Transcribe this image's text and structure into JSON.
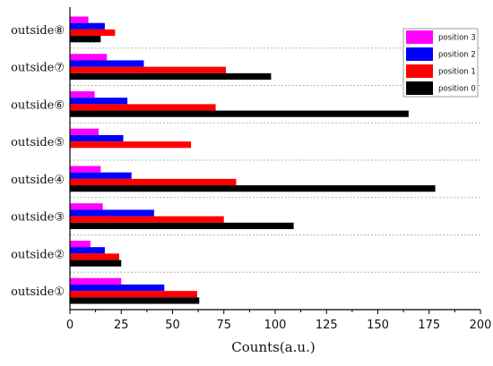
{
  "chart_data": {
    "type": "bar",
    "orientation": "horizontal",
    "categories": [
      "outside①",
      "outside②",
      "outside③",
      "outside④",
      "outside⑤",
      "outside⑥",
      "outside⑦",
      "outside⑧"
    ],
    "series": [
      {
        "name": "position 0",
        "color": "#000000",
        "values": [
          63,
          25,
          109,
          178,
          0,
          165,
          98,
          15
        ]
      },
      {
        "name": "position 1",
        "color": "#ff0000",
        "values": [
          62,
          24,
          75,
          81,
          59,
          71,
          76,
          22
        ]
      },
      {
        "name": "position 2",
        "color": "#0000ff",
        "values": [
          46,
          17,
          41,
          30,
          26,
          28,
          36,
          17
        ]
      },
      {
        "name": "position 3",
        "color": "#ff00ff",
        "values": [
          25,
          10,
          16,
          15,
          14,
          12,
          18,
          9
        ]
      }
    ],
    "xlabel": "Counts(a.u.)",
    "ylabel": "",
    "title": "",
    "xlim": [
      0,
      200
    ],
    "xticks": [
      "0",
      "25",
      "50",
      "75",
      "100",
      "125",
      "150",
      "175",
      "200"
    ],
    "grid": "horizontal dashed",
    "legend": {
      "placement": "top-right",
      "entries": [
        "position 3",
        "position 2",
        "position 1",
        "position 0"
      ]
    }
  }
}
